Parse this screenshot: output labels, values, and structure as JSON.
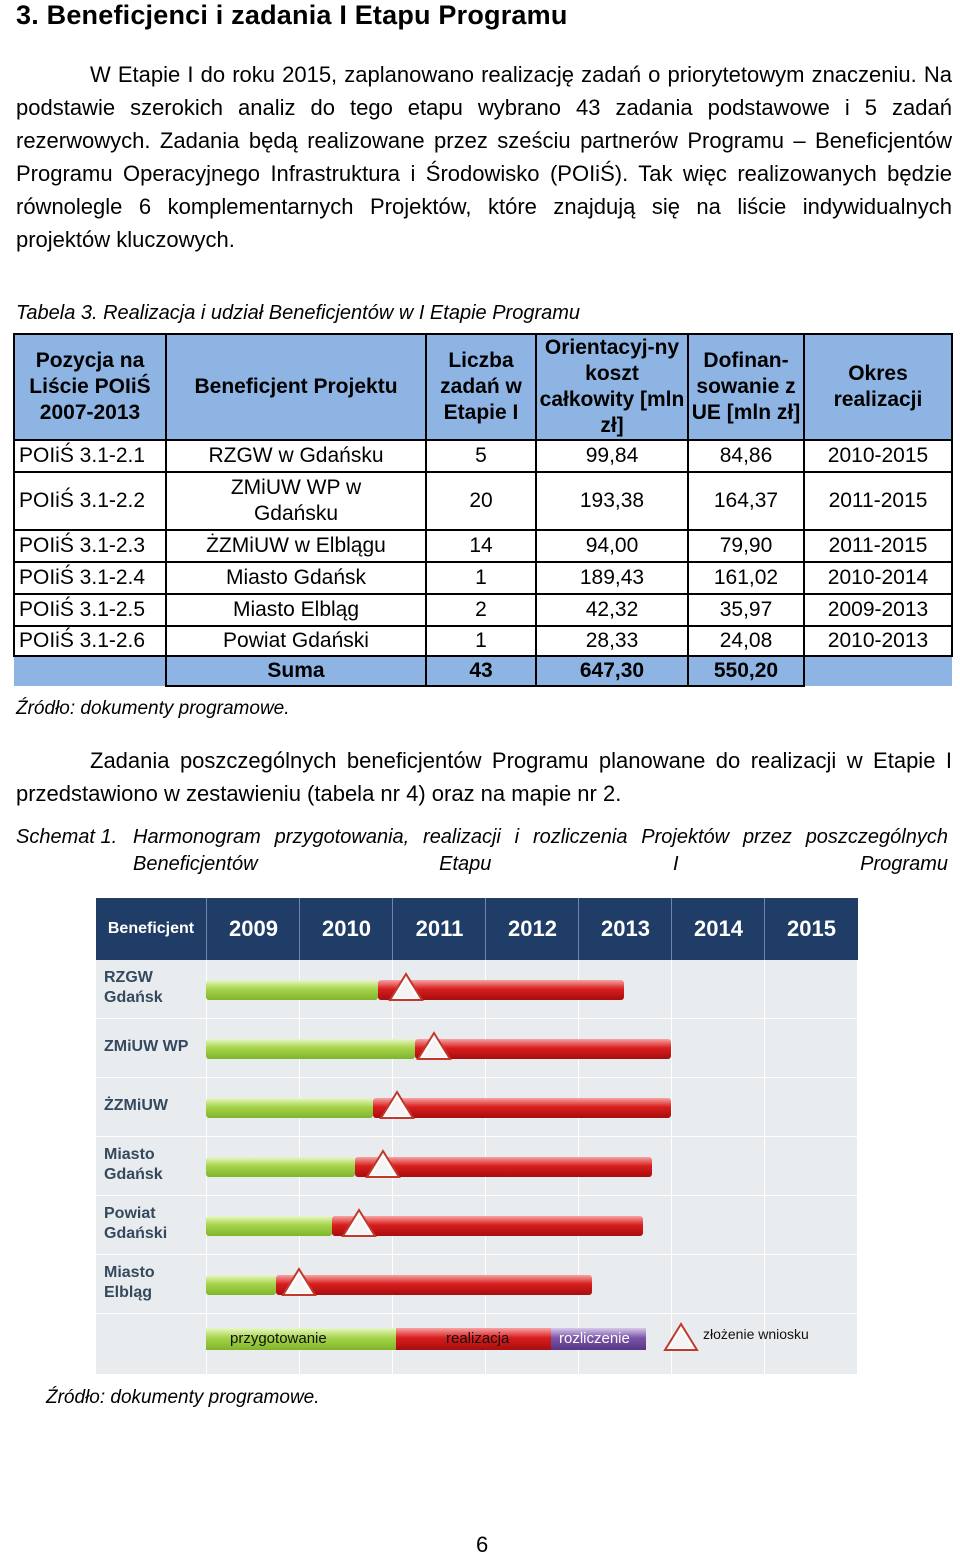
{
  "heading": "3. Beneficjenci i zadania I Etapu Programu",
  "paragraph1": "W Etapie I do roku 2015, zaplanowano realizację zadań o priorytetowym znaczeniu. Na podstawie szerokich analiz do tego etapu wybrano 43 zadania podstawowe i 5 zadań rezerwowych. Zadania będą realizowane przez sześciu partnerów Programu – Beneficjentów Programu Operacyjnego Infrastruktura i Środowisko (POIiŚ). Tak więc realizowanych będzie równolegle 6 komplementarnych Projektów, które znajdują się na liście indywidualnych projektów kluczowych.",
  "table_caption": "Tabela 3. Realizacja i udział Beneficjentów w I Etapie Programu",
  "table": {
    "headers": [
      "Pozycja na Liście POIiŚ 2007-2013",
      "Beneficjent Projektu",
      "Liczba zadań w Etapie I",
      "Orientacyj-ny koszt całkowity [mln zł]",
      "Dofinan-sowanie z UE [mln zł]",
      "Okres realizacji"
    ],
    "rows": [
      [
        "POIiŚ 3.1-2.1",
        "RZGW w Gdańsku",
        "5",
        "99,84",
        "84,86",
        "2010-2015"
      ],
      [
        "POIiŚ 3.1-2.2",
        "ZMiUW WP w Gdańsku",
        "20",
        "193,38",
        "164,37",
        "2011-2015"
      ],
      [
        "POIiŚ 3.1-2.3",
        "ŻZMiUW w Elblągu",
        "14",
        "94,00",
        "79,90",
        "2011-2015"
      ],
      [
        "POIiŚ 3.1-2.4",
        "Miasto Gdańsk",
        "1",
        "189,43",
        "161,02",
        "2010-2014"
      ],
      [
        "POIiŚ 3.1-2.5",
        "Miasto Elbląg",
        "2",
        "42,32",
        "35,97",
        "2009-2013"
      ],
      [
        "POIiŚ 3.1-2.6",
        "Powiat Gdański",
        "1",
        "28,33",
        "24,08",
        "2010-2013"
      ]
    ],
    "sum": [
      "Suma",
      "43",
      "647,30",
      "550,20"
    ]
  },
  "source1": "Źródło: dokumenty programowe.",
  "paragraph2": "Zadania poszczególnych beneficjentów Programu planowane do realizacji w Etapie I przedstawiono w zestawieniu (tabela nr 4) oraz na mapie nr 2.",
  "schema_caption_label": "Schemat 1.",
  "schema_caption_text": "Harmonogram przygotowania, realizacji i rozliczenia Projektów przez poszczególnych Beneficjentów Etapu I Programu",
  "gantt": {
    "header_label": "Beneficjent",
    "years": [
      "2009",
      "2010",
      "2011",
      "2012",
      "2013",
      "2014",
      "2015"
    ],
    "rows": [
      {
        "label": "RZGW Gdańsk",
        "lines": [
          "RZGW",
          "Gdańsk"
        ],
        "prep": [
          0,
          1.85
        ],
        "real": [
          1.85,
          4.5
        ],
        "submit": 2.15
      },
      {
        "label": "ZMiUW WP",
        "lines": [
          "ZMiUW WP"
        ],
        "prep": [
          0,
          2.25
        ],
        "real": [
          2.25,
          5.0
        ],
        "submit": 2.45
      },
      {
        "label": "ŻZMiUW",
        "lines": [
          "ŻZMiUW"
        ],
        "prep": [
          0,
          1.8
        ],
        "real": [
          1.8,
          5.0
        ],
        "submit": 2.05
      },
      {
        "label": "Miasto Gdańsk",
        "lines": [
          "Miasto",
          "Gdańsk"
        ],
        "prep": [
          0,
          1.6
        ],
        "real": [
          1.6,
          4.8
        ],
        "submit": 1.9
      },
      {
        "label": "Powiat Gdański",
        "lines": [
          "Powiat",
          "Gdański"
        ],
        "prep": [
          0,
          1.35
        ],
        "real": [
          1.35,
          4.7
        ],
        "submit": 1.65
      },
      {
        "label": "Miasto Elbląg",
        "lines": [
          "Miasto",
          "Elbląg"
        ],
        "prep": [
          0,
          0.75
        ],
        "real": [
          0.75,
          4.15
        ],
        "submit": 1.0
      }
    ],
    "legend": [
      "przygotowanie",
      "realizacja",
      "rozliczenie",
      "złożenie wniosku"
    ],
    "colors": {
      "prep": "#8cc63f",
      "real": "#d81e1e",
      "rozl": "#6a4a9c",
      "header": "#1f3d66"
    }
  },
  "source2": "Źródło: dokumenty programowe.",
  "page_number": "6"
}
